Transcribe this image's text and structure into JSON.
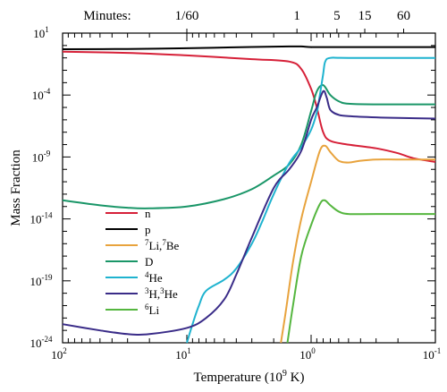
{
  "chart_data": {
    "type": "line",
    "ylabel": "Mass Fraction",
    "xlabel": "Temperature (10⁹ K)",
    "xlabel_text": "Temperature (10",
    "xlabel_exp": "9",
    "xlabel_tail": " K)",
    "x_scale": "log-reversed",
    "y_scale": "log",
    "xlim": [
      100,
      0.1
    ],
    "ylim": [
      1e-24,
      10
    ],
    "x_ticks": [
      {
        "base": "10",
        "exp": "2",
        "value": 100
      },
      {
        "base": "10",
        "exp": "1",
        "value": 10
      },
      {
        "base": "10",
        "exp": "0",
        "value": 1
      },
      {
        "base": "10",
        "exp": "-1",
        "value": 0.1
      }
    ],
    "y_ticks": [
      {
        "base": "10",
        "exp": "1",
        "value": 10
      },
      {
        "base": "10",
        "exp": "-4",
        "value": 0.0001
      },
      {
        "base": "10",
        "exp": "-9",
        "value": 1e-09
      },
      {
        "base": "10",
        "exp": "-14",
        "value": 1e-14
      },
      {
        "base": "10",
        "exp": "-19",
        "value": 1e-19
      },
      {
        "base": "10",
        "exp": "-24",
        "value": 1e-24
      }
    ],
    "top_axis": {
      "label": "Minutes:",
      "ticks": [
        {
          "label": "1/60",
          "temperature": 10
        },
        {
          "label": "1",
          "temperature": 1.3
        },
        {
          "label": "5",
          "temperature": 0.62
        },
        {
          "label": "15",
          "temperature": 0.37
        },
        {
          "label": "60",
          "temperature": 0.18
        }
      ]
    },
    "legend_position": "lower-left",
    "series": [
      {
        "name": "n",
        "label_sup": "",
        "label_main": "n",
        "color": "#d62038",
        "points": [
          [
            100,
            -0.5
          ],
          [
            30,
            -0.6
          ],
          [
            10,
            -0.8
          ],
          [
            3,
            -1.1
          ],
          [
            1.5,
            -1.3
          ],
          [
            1.2,
            -1.9
          ],
          [
            1.0,
            -3.5
          ],
          [
            0.9,
            -5
          ],
          [
            0.8,
            -7
          ],
          [
            0.7,
            -7.7
          ],
          [
            0.5,
            -8.0
          ],
          [
            0.3,
            -8.3
          ],
          [
            0.2,
            -8.7
          ],
          [
            0.15,
            -9.1
          ],
          [
            0.1,
            -9.4
          ]
        ]
      },
      {
        "name": "p",
        "label_sup": "",
        "label_main": "p",
        "color": "#000000",
        "points": [
          [
            100,
            -0.3
          ],
          [
            30,
            -0.28
          ],
          [
            10,
            -0.22
          ],
          [
            3,
            -0.12
          ],
          [
            1.5,
            -0.08
          ],
          [
            1.2,
            -0.08
          ],
          [
            1.0,
            -0.13
          ],
          [
            0.8,
            -0.13
          ],
          [
            0.1,
            -0.13
          ]
        ]
      },
      {
        "name": "7Li,7Be",
        "label_sup": "7",
        "label_main": "Li,",
        "label_sup2": "7",
        "label_main2": "Be",
        "color": "#e8a33d",
        "points": [
          [
            1.75,
            -24
          ],
          [
            1.6,
            -21.5
          ],
          [
            1.4,
            -17.5
          ],
          [
            1.2,
            -14
          ],
          [
            1.0,
            -11
          ],
          [
            0.85,
            -8.5
          ],
          [
            0.77,
            -8.1
          ],
          [
            0.7,
            -8.6
          ],
          [
            0.6,
            -9.3
          ],
          [
            0.5,
            -9.45
          ],
          [
            0.4,
            -9.3
          ],
          [
            0.3,
            -9.2
          ],
          [
            0.2,
            -9.2
          ],
          [
            0.1,
            -9.2
          ]
        ]
      },
      {
        "name": "D",
        "label_sup": "",
        "label_main": "D",
        "color": "#1a9668",
        "points": [
          [
            100,
            -12.5
          ],
          [
            50,
            -12.9
          ],
          [
            30,
            -13.1
          ],
          [
            20,
            -13.15
          ],
          [
            10,
            -13.0
          ],
          [
            5,
            -12.4
          ],
          [
            3,
            -11.6
          ],
          [
            2,
            -10.5
          ],
          [
            1.5,
            -9.6
          ],
          [
            1.2,
            -8.0
          ],
          [
            1.0,
            -5.3
          ],
          [
            0.9,
            -3.7
          ],
          [
            0.8,
            -3.2
          ],
          [
            0.7,
            -4.0
          ],
          [
            0.6,
            -4.5
          ],
          [
            0.5,
            -4.7
          ],
          [
            0.3,
            -4.75
          ],
          [
            0.1,
            -4.75
          ]
        ]
      },
      {
        "name": "4He",
        "label_sup": "4",
        "label_main": "He",
        "color": "#1fb3cf",
        "points": [
          [
            10,
            -24
          ],
          [
            9,
            -22.5
          ],
          [
            8,
            -21
          ],
          [
            7,
            -19.8
          ],
          [
            5,
            -18.9
          ],
          [
            4,
            -18
          ],
          [
            3,
            -16
          ],
          [
            2.5,
            -14.3
          ],
          [
            2,
            -12
          ],
          [
            1.5,
            -9.5
          ],
          [
            1.2,
            -8.2
          ],
          [
            1.0,
            -6.8
          ],
          [
            0.9,
            -5.4
          ],
          [
            0.85,
            -4.0
          ],
          [
            0.8,
            -2.3
          ],
          [
            0.77,
            -1.3
          ],
          [
            0.7,
            -1.0
          ],
          [
            0.5,
            -1.0
          ],
          [
            0.1,
            -1.0
          ]
        ]
      },
      {
        "name": "3H,3He",
        "label_sup": "3",
        "label_main": "H,",
        "label_sup2": "3",
        "label_main2": "He",
        "color": "#3a2c88",
        "points": [
          [
            100,
            -22.5
          ],
          [
            50,
            -23.0
          ],
          [
            30,
            -23.3
          ],
          [
            20,
            -23.3
          ],
          [
            10,
            -22.8
          ],
          [
            7,
            -22.0
          ],
          [
            5,
            -20.5
          ],
          [
            4,
            -18.5
          ],
          [
            3,
            -15.5
          ],
          [
            2,
            -11.5
          ],
          [
            1.5,
            -10.0
          ],
          [
            1.2,
            -8.5
          ],
          [
            1.0,
            -6.0
          ],
          [
            0.9,
            -5.0
          ],
          [
            0.8,
            -3.7
          ],
          [
            0.75,
            -4.2
          ],
          [
            0.7,
            -5.2
          ],
          [
            0.6,
            -5.6
          ],
          [
            0.5,
            -5.7
          ],
          [
            0.3,
            -5.8
          ],
          [
            0.2,
            -5.85
          ],
          [
            0.1,
            -5.9
          ]
        ]
      },
      {
        "name": "6Li",
        "label_sup": "6",
        "label_main": "Li",
        "color": "#55b63f",
        "points": [
          [
            1.55,
            -24
          ],
          [
            1.4,
            -21
          ],
          [
            1.2,
            -17
          ],
          [
            1.0,
            -14.5
          ],
          [
            0.85,
            -12.8
          ],
          [
            0.78,
            -12.5
          ],
          [
            0.7,
            -12.9
          ],
          [
            0.6,
            -13.4
          ],
          [
            0.5,
            -13.6
          ],
          [
            0.3,
            -13.6
          ],
          [
            0.1,
            -13.6
          ]
        ]
      }
    ]
  }
}
